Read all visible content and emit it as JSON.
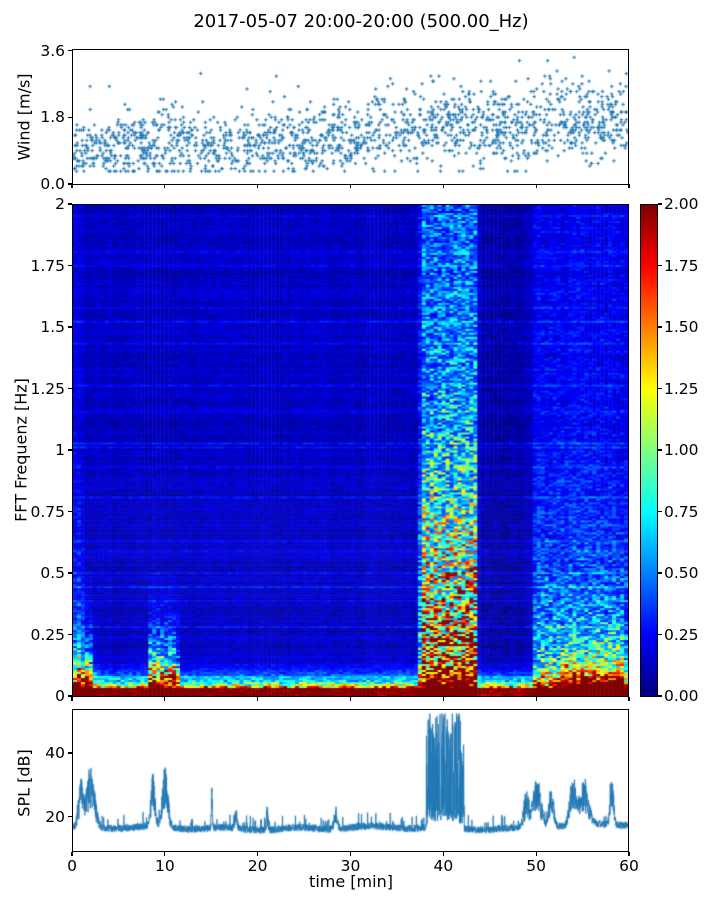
{
  "figure": {
    "title": "2017-05-07 20:00-20:00 (500.00_Hz)",
    "background": "#ffffff",
    "line_color": "#1f77b4",
    "axis_color": "#000000"
  },
  "chart_data": [
    {
      "id": "wind",
      "type": "scatter",
      "ylabel": "Wind [m/s]",
      "xlim": [
        0,
        60
      ],
      "ylim": [
        0,
        3.65
      ],
      "yticks": [
        {
          "v": 0.0,
          "label": "0.0"
        },
        {
          "v": 1.8,
          "label": "1.8"
        },
        {
          "v": 3.6,
          "label": "3.6"
        }
      ],
      "xticks": [
        0,
        10,
        20,
        30,
        40,
        50,
        60
      ],
      "marker": "plus",
      "marker_color": "#1f77b4",
      "n_points": 1750,
      "quantize": 0.07,
      "clip": [
        0.35,
        3.45
      ],
      "segments": [
        {
          "t0": 0,
          "t1": 3,
          "mean": 0.95,
          "std": 0.38
        },
        {
          "t0": 3,
          "t1": 8,
          "mean": 1.05,
          "std": 0.42
        },
        {
          "t0": 8,
          "t1": 14,
          "mean": 1.15,
          "std": 0.45
        },
        {
          "t0": 14,
          "t1": 20,
          "mean": 1.05,
          "std": 0.42
        },
        {
          "t0": 20,
          "t1": 26,
          "mean": 1.15,
          "std": 0.45
        },
        {
          "t0": 26,
          "t1": 32,
          "mean": 1.25,
          "std": 0.48
        },
        {
          "t0": 32,
          "t1": 38,
          "mean": 1.45,
          "std": 0.52
        },
        {
          "t0": 38,
          "t1": 44,
          "mean": 1.6,
          "std": 0.55
        },
        {
          "t0": 44,
          "t1": 50,
          "mean": 1.55,
          "std": 0.52
        },
        {
          "t0": 50,
          "t1": 60,
          "mean": 1.7,
          "std": 0.52
        }
      ]
    },
    {
      "id": "spectrogram",
      "type": "heatmap",
      "ylabel": "FFT Frequenz [Hz]",
      "xlim": [
        0,
        60
      ],
      "ylim": [
        0,
        2
      ],
      "yticks": [
        {
          "v": 2,
          "label": "2"
        },
        {
          "v": 1.75,
          "label": "1.75"
        },
        {
          "v": 1.5,
          "label": "1.5"
        },
        {
          "v": 1.25,
          "label": "1.25"
        },
        {
          "v": 1,
          "label": "1"
        },
        {
          "v": 0.75,
          "label": "0.75"
        },
        {
          "v": 0.5,
          "label": "0.5"
        },
        {
          "v": 0.25,
          "label": "0.25"
        },
        {
          "v": 0,
          "label": "0"
        }
      ],
      "colormap": "jet",
      "clim": [
        0,
        2
      ],
      "colorbar_ticks": [
        {
          "v": 2,
          "label": "2.00"
        },
        {
          "v": 1.75,
          "label": "1.75"
        },
        {
          "v": 1.5,
          "label": "1.50"
        },
        {
          "v": 1.25,
          "label": "1.25"
        },
        {
          "v": 1,
          "label": "1.00"
        },
        {
          "v": 0.75,
          "label": "0.75"
        },
        {
          "v": 0.5,
          "label": "0.50"
        },
        {
          "v": 0.25,
          "label": "0.25"
        },
        {
          "v": 0,
          "label": "0.00"
        }
      ],
      "background_level": 0.13,
      "row_noise": 0.08,
      "cell_noise": 0.1,
      "bottom_hot": {
        "f_solid": 0.03,
        "fscale": 0.032,
        "amp": 2.2
      },
      "events": [
        {
          "t0": 0,
          "t1": 1.2,
          "fmax": 2,
          "base": 0.05,
          "amp": 0.4,
          "fscale": 0.5
        },
        {
          "t0": 0,
          "t1": 2.4,
          "fmax": 0.5,
          "base": 0,
          "amp": 2.3,
          "fscale": 0.11
        },
        {
          "t0": 8.0,
          "t1": 11.5,
          "fmax": 0.5,
          "base": 0,
          "amp": 2.5,
          "fscale": 0.12
        },
        {
          "t0": 37.4,
          "t1": 43.9,
          "fmax": 2,
          "base": 0.3,
          "amp": 2.2,
          "fscale": 0.55
        },
        {
          "t0": 44.0,
          "t1": 48.8,
          "fmax": 2,
          "base": -0.06,
          "amp": 0,
          "fscale": 1
        },
        {
          "t0": 49.7,
          "t1": 60,
          "fmax": 2,
          "base": 0.1,
          "amp": 0.9,
          "fscale": 0.35
        },
        {
          "t0": 52.5,
          "t1": 59.6,
          "fmax": 0.45,
          "base": 0,
          "amp": 1.7,
          "fscale": 0.09
        }
      ]
    },
    {
      "id": "spl",
      "type": "line",
      "ylabel": "SPL [dB]",
      "xlabel": "time [min]",
      "xlim": [
        0,
        60
      ],
      "ylim": [
        9,
        53.8
      ],
      "yticks": [
        {
          "v": 20,
          "label": "20"
        },
        {
          "v": 40,
          "label": "40"
        }
      ],
      "xticks": [
        {
          "v": 0,
          "label": "0"
        },
        {
          "v": 10,
          "label": "10"
        },
        {
          "v": 20,
          "label": "20"
        },
        {
          "v": 30,
          "label": "30"
        },
        {
          "v": 40,
          "label": "40"
        },
        {
          "v": 50,
          "label": "50"
        },
        {
          "v": 60,
          "label": "60"
        }
      ],
      "color": "#1f77b4",
      "baseline": 16.3,
      "baseline_late_lift": 1.0,
      "noise": 1.1,
      "peaks": [
        {
          "t": 0.85,
          "h": 13,
          "w": 0.25
        },
        {
          "t": 1.9,
          "h": 17,
          "w": 0.45
        },
        {
          "t": 8.65,
          "h": 16,
          "w": 0.22
        },
        {
          "t": 9.95,
          "h": 18,
          "w": 0.3
        },
        {
          "t": 15.0,
          "h": 11,
          "w": 0.06
        },
        {
          "t": 17.6,
          "h": 7,
          "w": 0.12
        },
        {
          "t": 21.0,
          "h": 6,
          "w": 0.1
        },
        {
          "t": 28.4,
          "h": 5,
          "w": 0.2
        },
        {
          "t": 49.0,
          "h": 10,
          "w": 0.3
        },
        {
          "t": 50.15,
          "h": 15,
          "w": 0.4
        },
        {
          "t": 51.7,
          "h": 12,
          "w": 0.25
        },
        {
          "t": 54.0,
          "h": 14,
          "w": 0.3
        },
        {
          "t": 55.2,
          "h": 12,
          "w": 0.5
        },
        {
          "t": 58.25,
          "h": 13,
          "w": 0.2
        }
      ],
      "burst": {
        "t0": 38.2,
        "t1": 42.3,
        "base_lift": 5,
        "spike_h": 31,
        "density": 0.5
      }
    }
  ]
}
